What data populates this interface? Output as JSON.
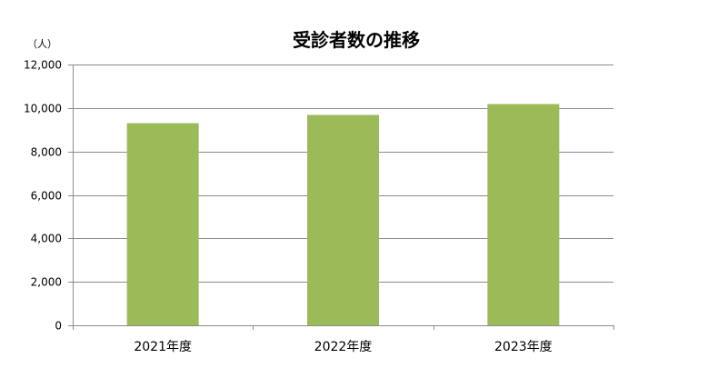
{
  "chart_data": {
    "type": "bar",
    "title": "受診者数の推移",
    "unit_label": "（人）",
    "categories": [
      "2021年度",
      "2022年度",
      "2023年度"
    ],
    "values": [
      9300,
      9680,
      10180
    ],
    "ylim": [
      0,
      12000
    ],
    "yticks": [
      0,
      2000,
      4000,
      6000,
      8000,
      10000,
      12000
    ],
    "ytick_labels": [
      "0",
      "2,000",
      "4,000",
      "6,000",
      "8,000",
      "10,000",
      "12,000"
    ],
    "grid": true,
    "legend": "none",
    "bar_color": "#9bbb59",
    "gridline_color": "#8c8c8c"
  }
}
